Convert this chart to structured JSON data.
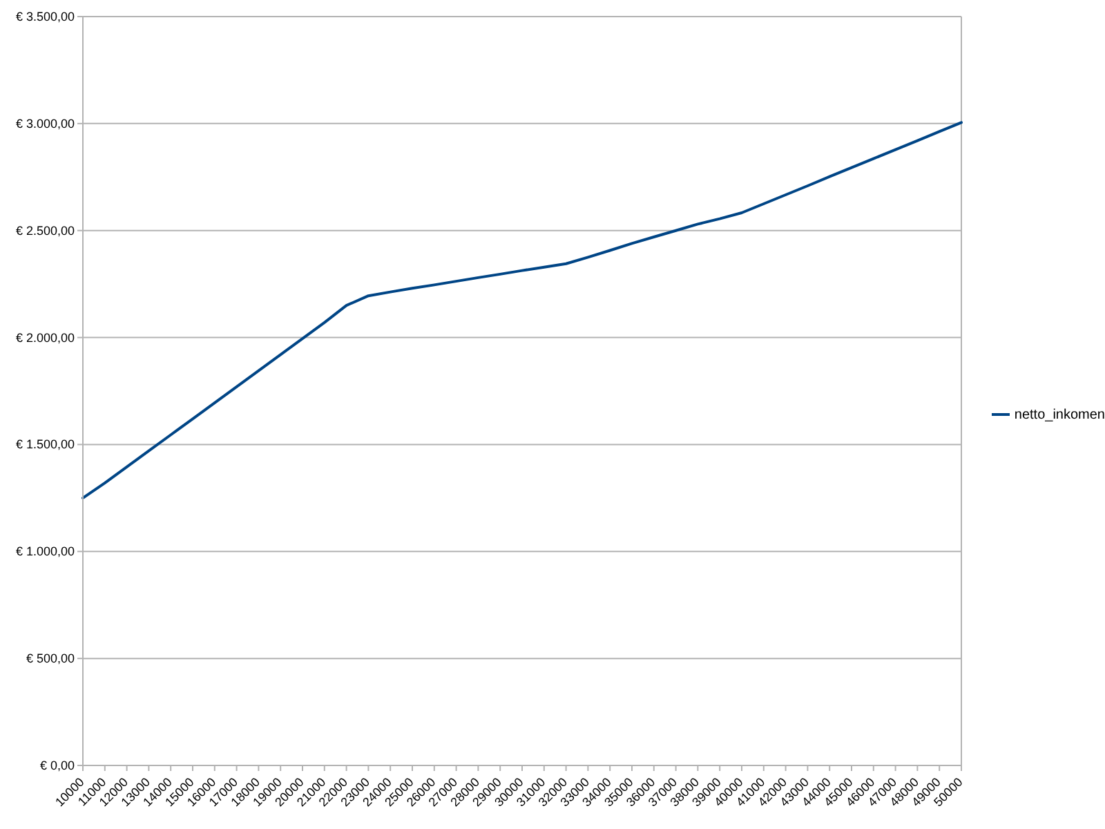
{
  "chart_data": {
    "type": "line",
    "categories": [
      "10000",
      "11000",
      "12000",
      "13000",
      "14000",
      "15000",
      "16000",
      "17000",
      "18000",
      "19000",
      "20000",
      "21000",
      "22000",
      "23000",
      "24000",
      "25000",
      "26000",
      "27000",
      "28000",
      "29000",
      "30000",
      "31000",
      "32000",
      "33000",
      "34000",
      "35000",
      "36000",
      "37000",
      "38000",
      "39000",
      "40000",
      "41000",
      "42000",
      "43000",
      "44000",
      "45000",
      "46000",
      "47000",
      "48000",
      "49000",
      "50000"
    ],
    "series": [
      {
        "name": "netto_inkomen",
        "color": "#004586",
        "values": [
          1250,
          1320,
          1395,
          1470,
          1545,
          1620,
          1695,
          1770,
          1845,
          1920,
          1995,
          2070,
          2150,
          2195,
          2213,
          2230,
          2246,
          2263,
          2280,
          2296,
          2313,
          2329,
          2345,
          2375,
          2407,
          2440,
          2470,
          2500,
          2530,
          2555,
          2583,
          2625,
          2667,
          2709,
          2752,
          2794,
          2836,
          2878,
          2920,
          2963,
          3005
        ]
      }
    ],
    "ylim": [
      0,
      3500
    ],
    "yticks": [
      {
        "value": 0,
        "label": "€ 0,00"
      },
      {
        "value": 500,
        "label": "€ 500,00"
      },
      {
        "value": 1000,
        "label": "€ 1.000,00"
      },
      {
        "value": 1500,
        "label": "€ 1.500,00"
      },
      {
        "value": 2000,
        "label": "€ 2.000,00"
      },
      {
        "value": 2500,
        "label": "€ 2.500,00"
      },
      {
        "value": 3000,
        "label": "€ 3.000,00"
      },
      {
        "value": 3500,
        "label": "€ 3.500,00"
      }
    ],
    "grid": "y",
    "legend": "right",
    "marker": "none",
    "line_style": "solid"
  }
}
